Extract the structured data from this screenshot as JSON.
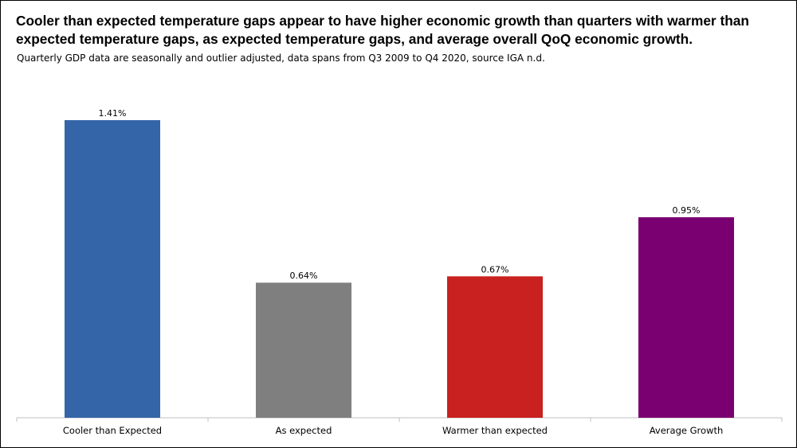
{
  "header": {
    "title": "Cooler than expected temperature gaps appear to have higher economic growth than quarters with warmer than expected temperature gaps, as expected temperature gaps, and average overall QoQ economic growth.",
    "subtitle": "Quarterly GDP data are seasonally and outlier adjusted, data spans from Q3 2009 to Q4 2020, source IGA n.d."
  },
  "chart_data": {
    "type": "bar",
    "categories": [
      "Cooler than Expected",
      "As expected",
      "Warmer than expected",
      "Average Growth"
    ],
    "values": [
      1.41,
      0.64,
      0.67,
      0.95
    ],
    "data_labels": [
      "1.41%",
      "0.64%",
      "0.67%",
      "0.95%"
    ],
    "colors": [
      "#3465a8",
      "#7f7f7f",
      "#c82120",
      "#7a0072"
    ],
    "xlabel": "",
    "ylabel": "",
    "ylim": [
      0,
      1.41
    ],
    "grid": false,
    "legend": "none",
    "y_axis_visible": false
  }
}
